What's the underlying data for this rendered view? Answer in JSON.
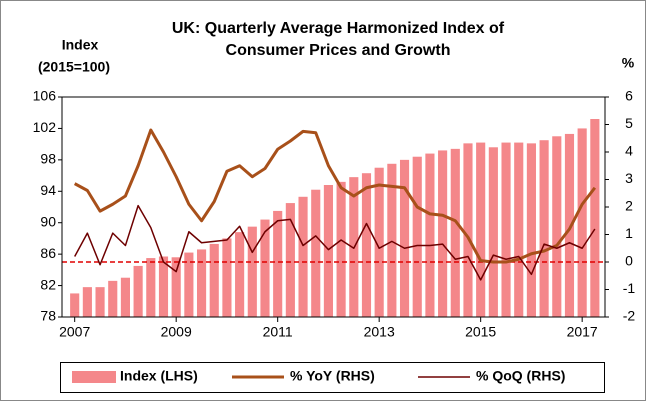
{
  "chart_data": {
    "type": "bar",
    "title": [
      "UK: Quarterly Average Harmonized Index of",
      "Consumer Prices and Growth"
    ],
    "ylabel": [
      "Index",
      "(2015=100)"
    ],
    "y2label": "%",
    "x": [
      2007,
      2007.25,
      2007.5,
      2007.75,
      2008,
      2008.25,
      2008.5,
      2008.75,
      2009,
      2009.25,
      2009.5,
      2009.75,
      2010,
      2010.25,
      2010.5,
      2010.75,
      2011,
      2011.25,
      2011.5,
      2011.75,
      2012,
      2012.25,
      2012.5,
      2012.75,
      2013,
      2013.25,
      2013.5,
      2013.75,
      2014,
      2014.25,
      2014.5,
      2014.75,
      2015,
      2015.25,
      2015.5,
      2015.75,
      2016,
      2016.25,
      2016.5,
      2016.75,
      2017,
      2017.25
    ],
    "xlim": [
      2006.75,
      2017.45
    ],
    "xticks": [
      2007,
      2009,
      2011,
      2013,
      2015,
      2017
    ],
    "ylim": [
      78,
      106
    ],
    "yticks": [
      78,
      82,
      86,
      90,
      94,
      98,
      102,
      106
    ],
    "y2lim": [
      -2,
      6
    ],
    "y2ticks": [
      -2,
      -1,
      0,
      1,
      2,
      3,
      4,
      5,
      6
    ],
    "reference_line": {
      "axis": "y2",
      "value": 0,
      "color": "#e00000"
    },
    "legend": "bottom",
    "series": [
      {
        "name": "Index (LHS)",
        "type": "bar",
        "color": "#f4878a",
        "values": [
          81.0,
          81.8,
          81.8,
          82.6,
          83.0,
          84.5,
          85.5,
          85.7,
          85.6,
          86.2,
          86.6,
          87.3,
          88.0,
          88.8,
          89.5,
          90.4,
          91.5,
          92.5,
          93.3,
          94.2,
          94.8,
          95.2,
          95.8,
          96.3,
          97.0,
          97.5,
          98.0,
          98.4,
          98.8,
          99.2,
          99.4,
          100.1,
          100.2,
          99.6,
          100.2,
          100.2,
          100.1,
          100.5,
          101.0,
          101.3,
          102.0,
          103.2
        ]
      },
      {
        "name": "% YoY (RHS)",
        "type": "line",
        "axis": "y2",
        "color": "#a8501a",
        "width": 3,
        "values": [
          2.85,
          2.6,
          1.85,
          2.1,
          2.4,
          3.5,
          4.8,
          4.0,
          3.1,
          2.1,
          1.5,
          2.2,
          3.3,
          3.5,
          3.1,
          3.4,
          4.1,
          4.4,
          4.75,
          4.7,
          3.5,
          2.7,
          2.4,
          2.7,
          2.8,
          2.75,
          2.7,
          2.0,
          1.75,
          1.7,
          1.5,
          0.9,
          0.05,
          0,
          0,
          0.1,
          0.3,
          0.4,
          0.6,
          1.2,
          2.1,
          2.7
        ]
      },
      {
        "name": "% QoQ (RHS)",
        "type": "line",
        "axis": "y2",
        "color": "#6e0000",
        "width": 1.5,
        "values": [
          0.2,
          1.05,
          -0.1,
          1.05,
          0.6,
          2.05,
          1.25,
          0,
          -0.35,
          1.1,
          0.7,
          0.75,
          0.8,
          1.3,
          0.35,
          1.1,
          1.5,
          1.55,
          0.6,
          0.95,
          0.45,
          0.8,
          0.5,
          1.4,
          0.5,
          0.75,
          0.5,
          0.6,
          0.6,
          0.65,
          0.1,
          0.2,
          -0.65,
          0.25,
          0.1,
          0.2,
          -0.45,
          0.65,
          0.5,
          0.7,
          0.5,
          1.2
        ]
      }
    ]
  }
}
